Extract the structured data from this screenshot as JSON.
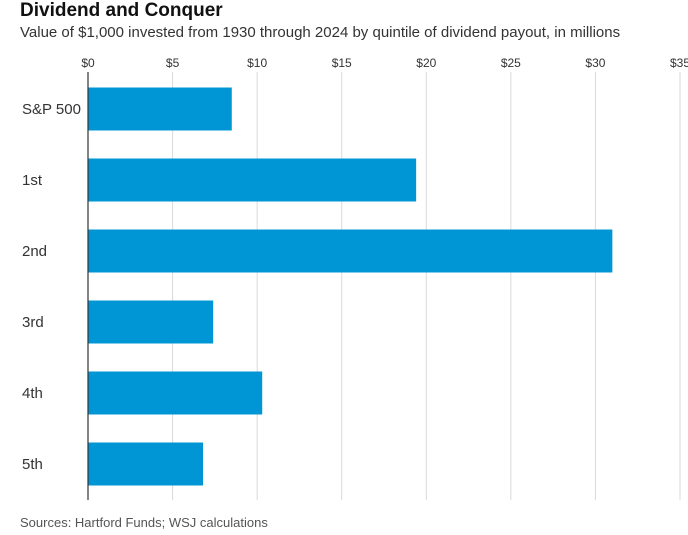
{
  "chart_data": {
    "type": "bar",
    "orientation": "horizontal",
    "title": "Dividend and Conquer",
    "subtitle": "Value of $1,000 invested from 1930 through 2024 by quintile of dividend payout, in millions",
    "categories": [
      "S&P 500",
      "1st",
      "2nd",
      "3rd",
      "4th",
      "5th"
    ],
    "values": [
      8.5,
      19.4,
      31.0,
      7.4,
      10.3,
      6.8
    ],
    "xlim": [
      0,
      35
    ],
    "x_ticks": [
      0,
      5,
      10,
      15,
      20,
      25,
      30,
      35
    ],
    "x_tick_labels": [
      "$0",
      "$5",
      "$10",
      "$15",
      "$20",
      "$25",
      "$30",
      "$35"
    ],
    "xlabel": "",
    "ylabel": "",
    "grid": true,
    "bar_color": "#0096d6",
    "gridline_color": "#d9d9d9",
    "axis_color": "#333333",
    "source": "Sources: Hartford Funds; WSJ calculations"
  }
}
